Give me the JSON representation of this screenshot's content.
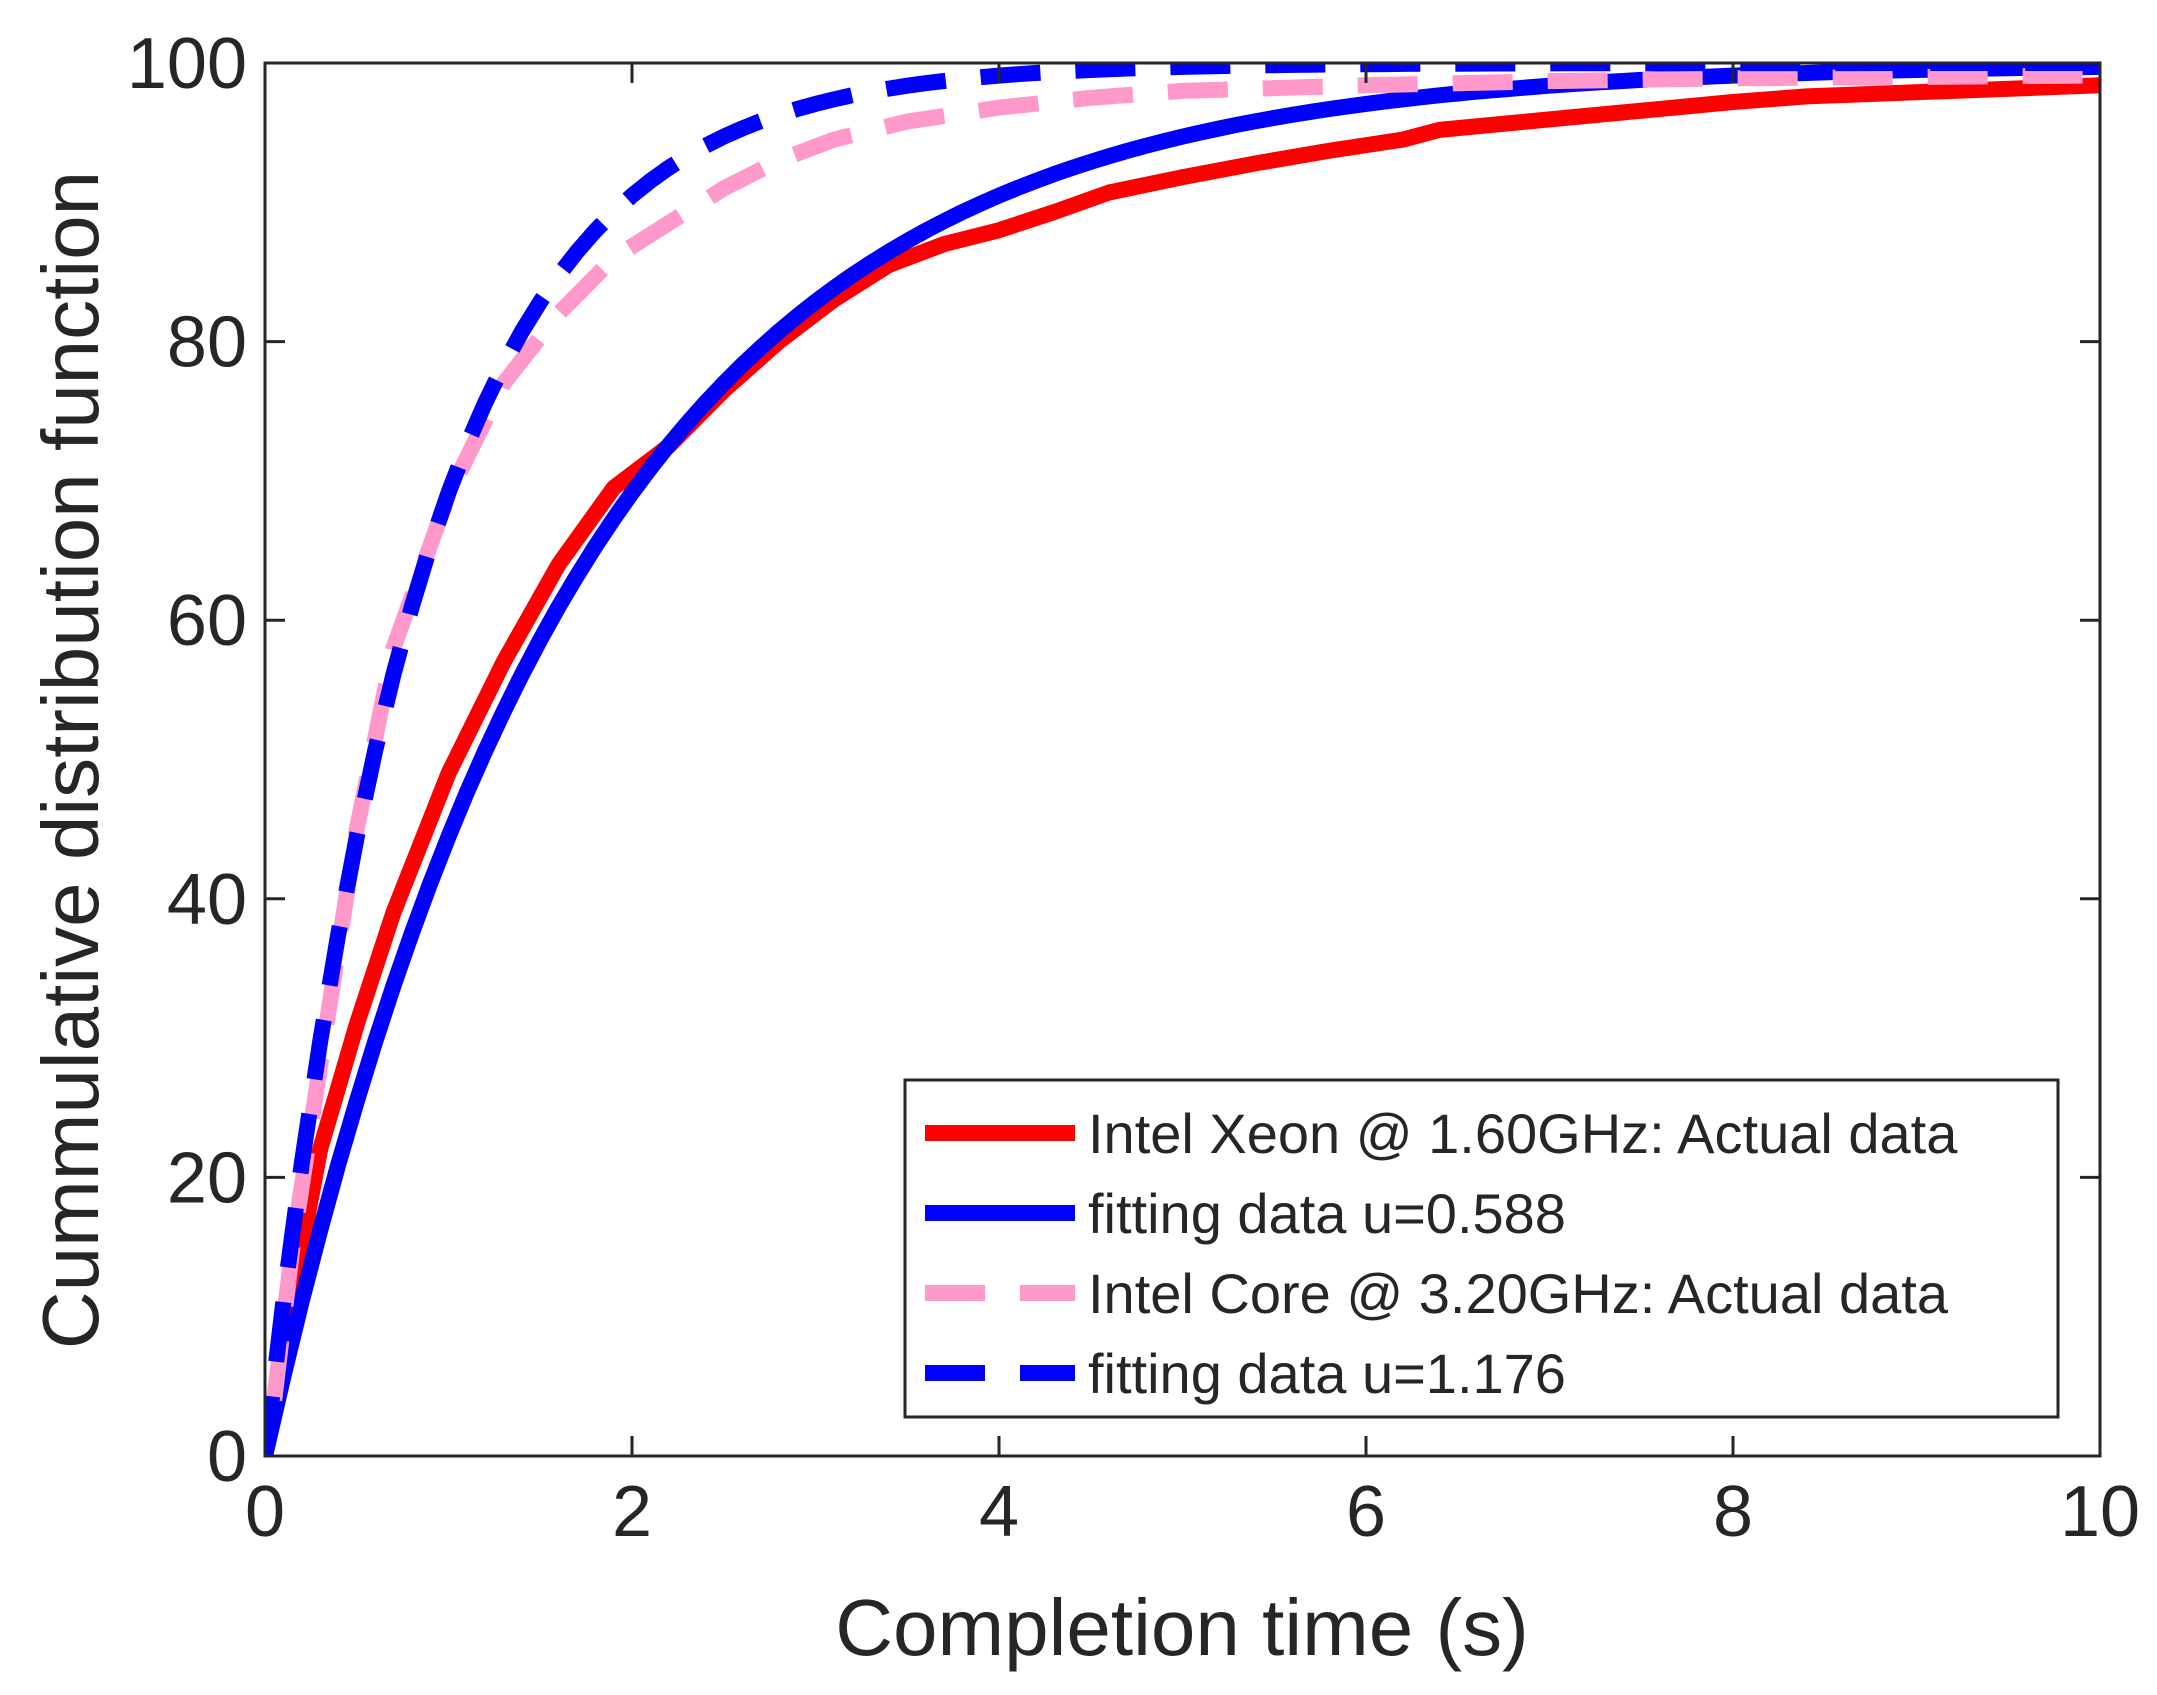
{
  "chart_data": {
    "type": "line",
    "title": "",
    "xlabel": "Completion time (s)",
    "ylabel": "Cummulative distribution function",
    "xlim": [
      0,
      10
    ],
    "ylim": [
      0,
      100
    ],
    "xticks": [
      0,
      2,
      4,
      6,
      8,
      10
    ],
    "yticks": [
      0,
      20,
      40,
      60,
      80,
      100
    ],
    "xtick_labels": [
      "0",
      "2",
      "4",
      "6",
      "8",
      "10"
    ],
    "ytick_labels": [
      "0",
      "20",
      "40",
      "60",
      "80",
      "100"
    ],
    "grid": false,
    "legend_position": "bottom-right",
    "series": [
      {
        "name": "Intel Xeon @ 1.60GHz: Actual data",
        "color": "#ff0000",
        "style": "solid",
        "x": [
          0.1,
          0.3,
          0.5,
          0.7,
          1.0,
          1.3,
          1.6,
          1.9,
          2.2,
          2.5,
          2.8,
          3.1,
          3.4,
          3.7,
          4.0,
          4.3,
          4.6,
          5.0,
          5.4,
          5.8,
          6.2,
          6.4,
          6.8,
          7.2,
          7.6,
          8.0,
          8.4,
          8.8,
          9.2,
          9.6,
          10.0
        ],
        "y": [
          8,
          22,
          31,
          39,
          49,
          57,
          64,
          69.5,
          72.5,
          76.5,
          80,
          83,
          85.5,
          87,
          88,
          89.3,
          90.7,
          91.8,
          92.8,
          93.7,
          94.5,
          95.2,
          95.7,
          96.2,
          96.7,
          97.2,
          97.6,
          97.8,
          98.0,
          98.2,
          98.4
        ]
      },
      {
        "name": "fitting data u=0.588",
        "color": "#0000ff",
        "style": "solid",
        "function": "exp_cdf",
        "rate": 0.588,
        "x_start": 0,
        "x_end": 10,
        "x_step": 0.1
      },
      {
        "name": "Intel Core @ 3.20GHz: Actual data",
        "color": "#ff99cc",
        "style": "dashed",
        "x": [
          0.05,
          0.15,
          0.3,
          0.5,
          0.7,
          1.0,
          1.3,
          1.6,
          1.9,
          2.2,
          2.5,
          2.8,
          3.1,
          3.5,
          4.0,
          4.5,
          5.0,
          6.0,
          7.0,
          8.0,
          9.0,
          10.0
        ],
        "y": [
          4,
          15,
          28,
          45,
          58,
          69,
          77,
          82,
          86,
          88.5,
          91,
          93,
          94.5,
          95.8,
          96.8,
          97.5,
          98.0,
          98.4,
          98.7,
          98.9,
          99.0,
          99.1
        ]
      },
      {
        "name": "fitting data u=1.176",
        "color": "#0000ff",
        "style": "dashed",
        "function": "exp_cdf",
        "rate": 1.176,
        "x_start": 0,
        "x_end": 10,
        "x_step": 0.1
      }
    ]
  }
}
